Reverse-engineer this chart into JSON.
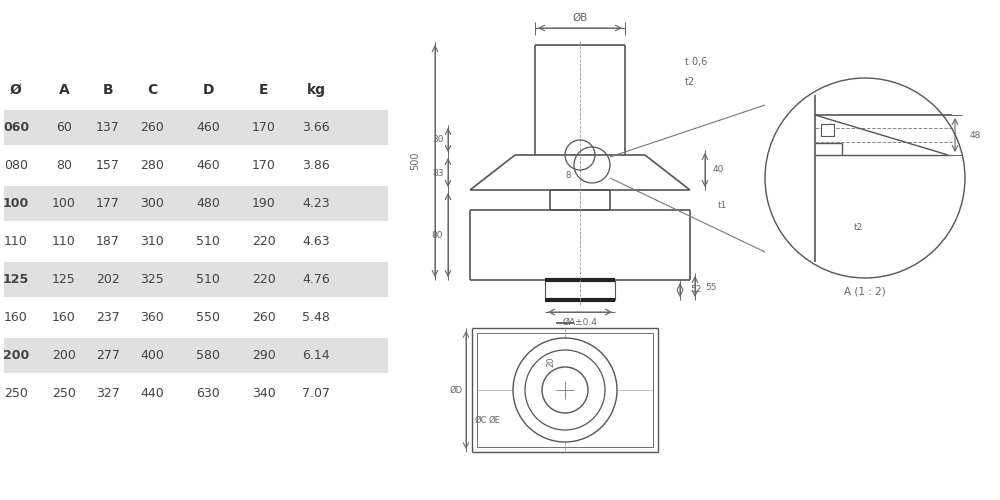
{
  "table_headers": [
    "Ø",
    "A",
    "B",
    "C",
    "D",
    "E",
    "kg"
  ],
  "table_rows": [
    [
      "060",
      "60",
      "137",
      "260",
      "460",
      "170",
      "3.66"
    ],
    [
      "080",
      "80",
      "157",
      "280",
      "460",
      "170",
      "3.86"
    ],
    [
      "100",
      "100",
      "177",
      "300",
      "480",
      "190",
      "4.23"
    ],
    [
      "110",
      "110",
      "187",
      "310",
      "510",
      "220",
      "4.63"
    ],
    [
      "125",
      "125",
      "202",
      "325",
      "510",
      "220",
      "4.76"
    ],
    [
      "160",
      "160",
      "237",
      "360",
      "550",
      "260",
      "5.48"
    ],
    [
      "200",
      "200",
      "277",
      "400",
      "580",
      "290",
      "6.14"
    ],
    [
      "250",
      "250",
      "327",
      "440",
      "630",
      "340",
      "7.07"
    ]
  ],
  "shaded_rows": [
    0,
    2,
    4,
    6
  ],
  "row_bg_color": "#e0e0e0",
  "bg_color": "#ffffff",
  "text_color": "#444444",
  "header_color": "#333333",
  "line_color": "#555555",
  "dim_color": "#666666",
  "font_size": 9,
  "header_font_size": 9
}
